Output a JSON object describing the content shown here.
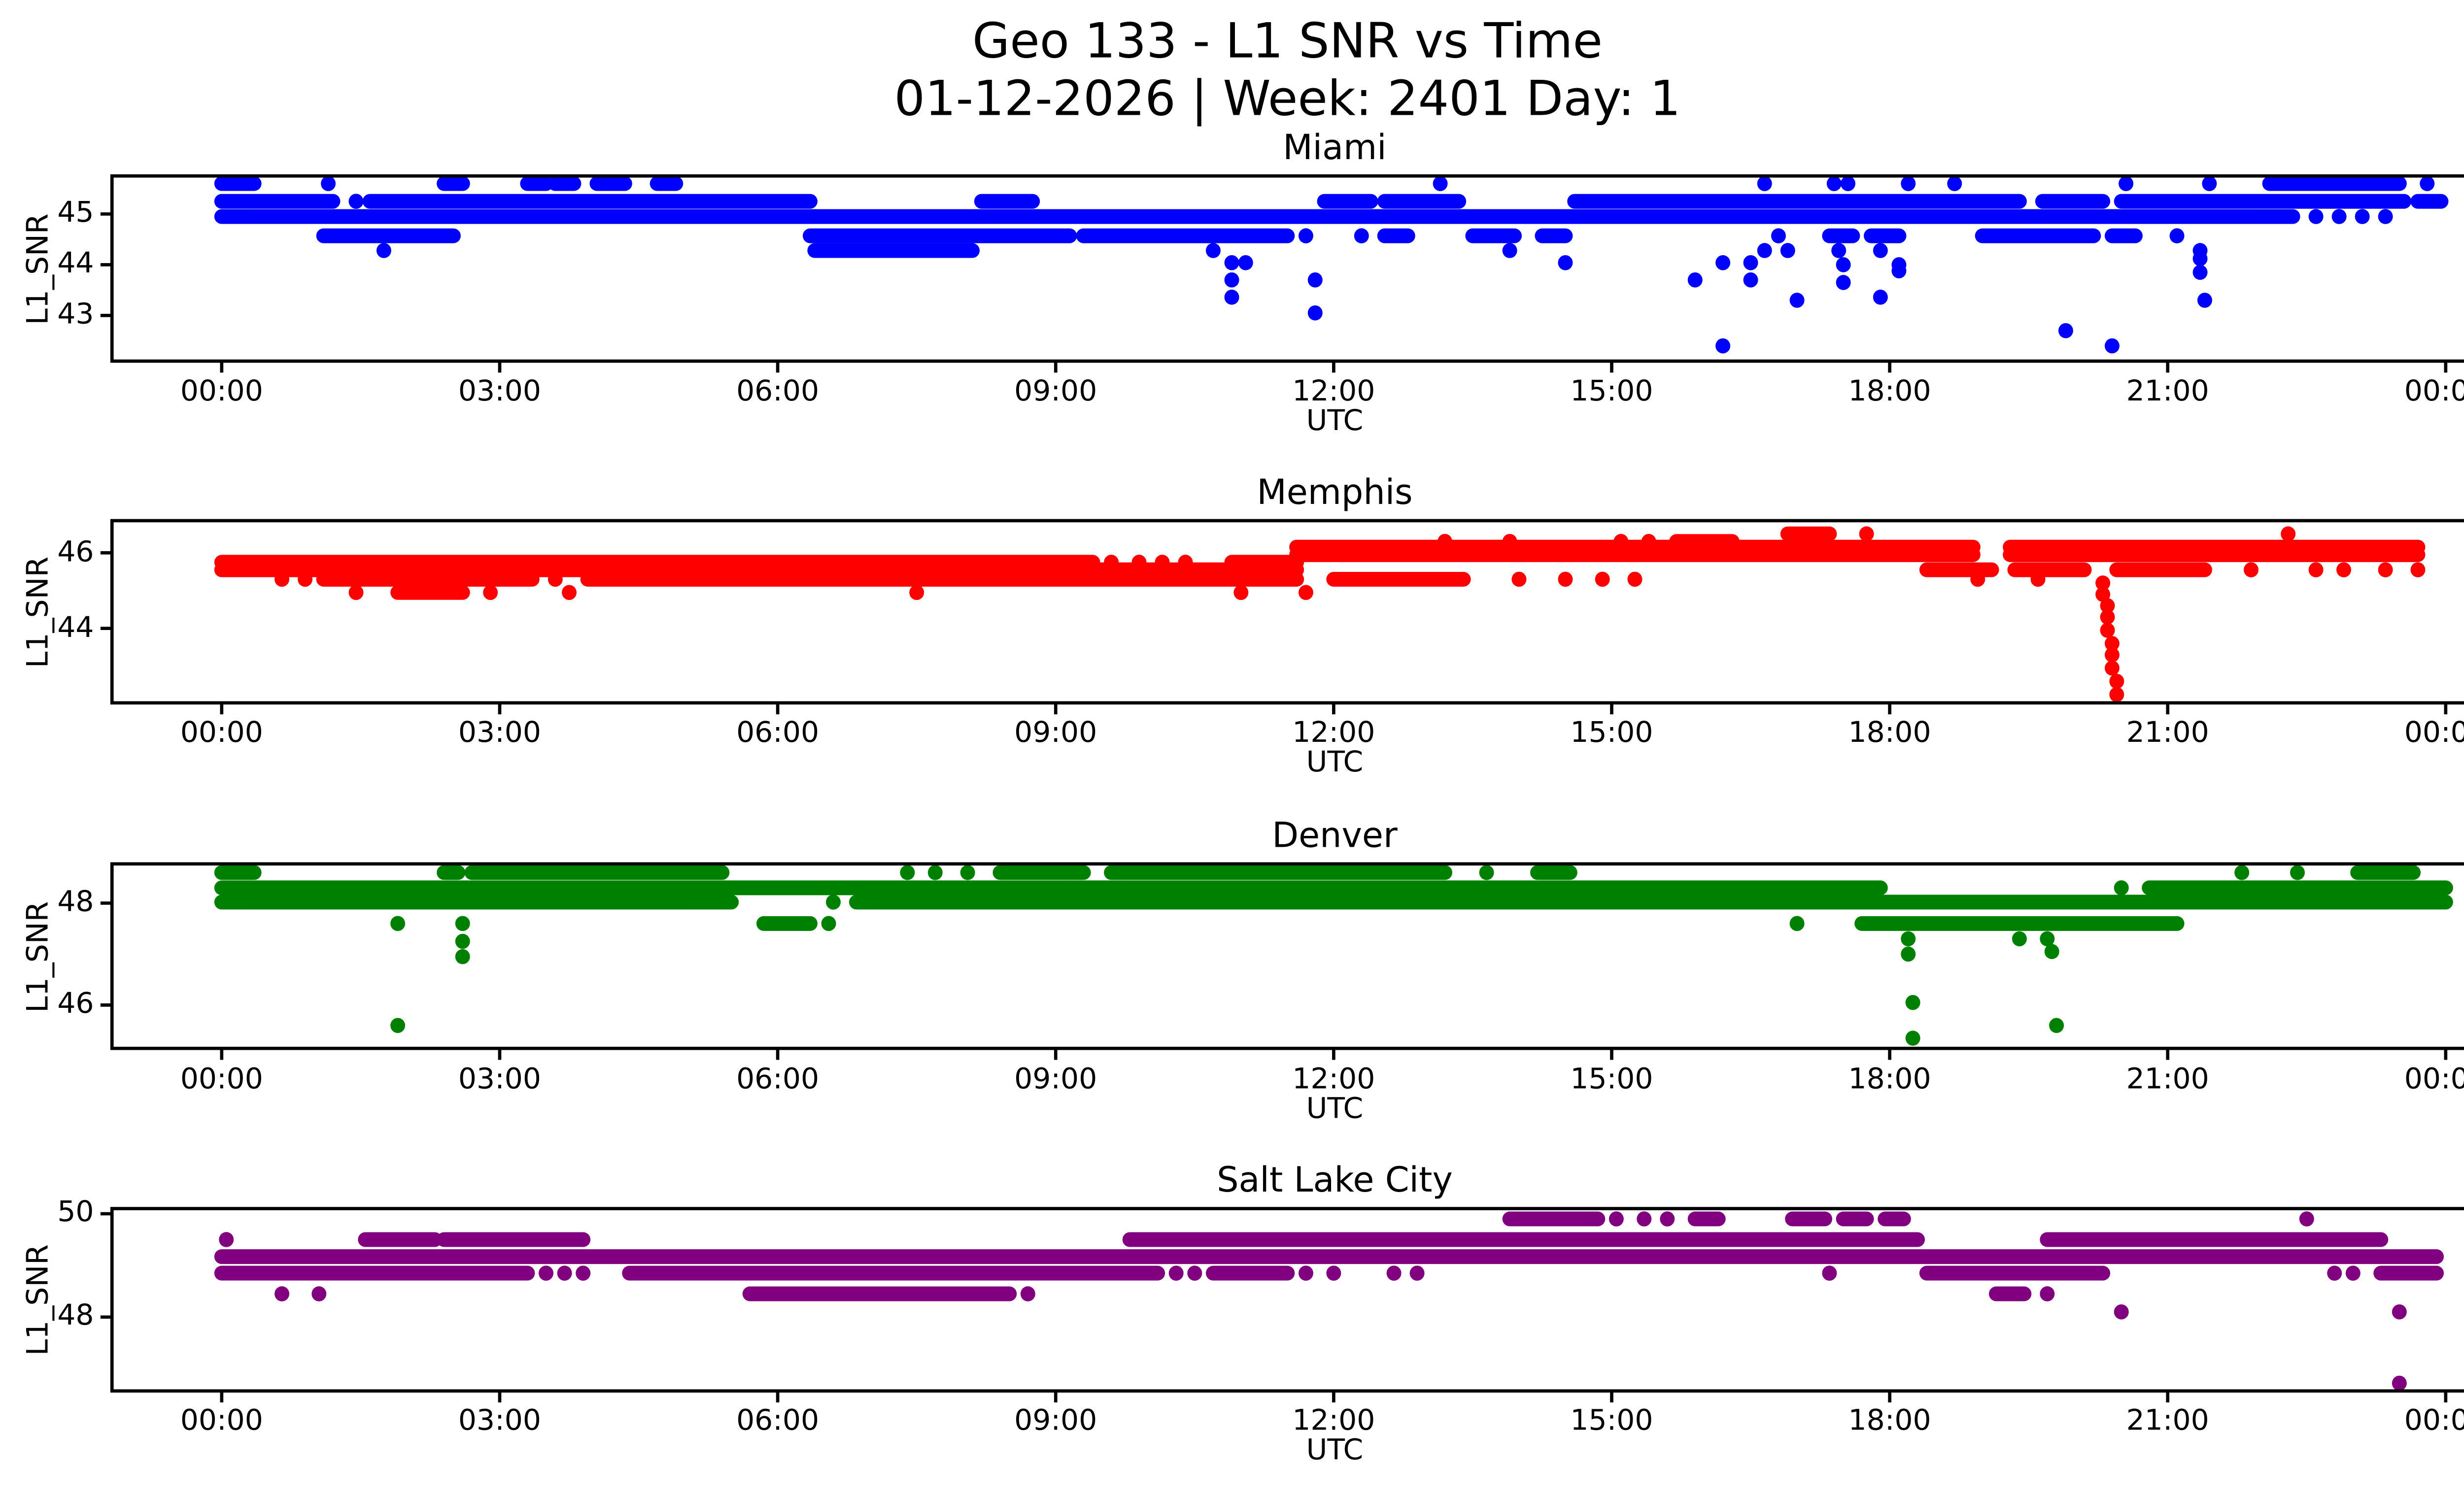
{
  "figure": {
    "suptitle_line1": "Geo 133 - L1 SNR vs Time",
    "suptitle_line2": "01-12-2026 | Week: 2401 Day: 1",
    "background_color": "#ffffff",
    "text_color": "#000000"
  },
  "chart_data": {
    "type": "scatter",
    "xlabel": "UTC",
    "ylabel": "L1_SNR",
    "x_unit": "hours",
    "x_tick_labels": [
      "00:00",
      "03:00",
      "06:00",
      "09:00",
      "12:00",
      "15:00",
      "18:00",
      "21:00",
      "00:00"
    ],
    "x_tick_hours": [
      0,
      3,
      6,
      9,
      12,
      15,
      18,
      21,
      24
    ],
    "xlim_hours": [
      -1.18,
      25.08
    ],
    "encoding_note": "Dense scatter runs are encoded as bands: each band is one SNR level (dB-Hz) with [startHour,endHour] runs and isolated dot hours; sparse markers are listed as individual [hour, snr] points.",
    "subplots": [
      {
        "title": "Miami",
        "color": "#0000ff",
        "ylim": [
          42.1,
          45.75
        ],
        "yticks": [
          43,
          44,
          45
        ],
        "ytick_labels": [
          "43",
          "44",
          "45"
        ],
        "bands": [
          {
            "snr": 45.6,
            "runs": [
              [
                0,
                0.35
              ],
              [
                2.4,
                2.6
              ],
              [
                3.3,
                3.5
              ],
              [
                3.6,
                3.8
              ],
              [
                4.05,
                4.35
              ],
              [
                4.7,
                4.9
              ],
              [
                22.1,
                23.5
              ]
            ],
            "dots": [
              1.15,
              13.15,
              16.65,
              17.4,
              17.55,
              18.2,
              18.7,
              20.55,
              21.45,
              23.8
            ]
          },
          {
            "snr": 45.25,
            "runs": [
              [
                0,
                1.2
              ],
              [
                1.6,
                6.35
              ],
              [
                8.2,
                8.75
              ],
              [
                11.9,
                12.4
              ],
              [
                12.55,
                13.35
              ],
              [
                14.6,
                19.4
              ],
              [
                19.65,
                20.3
              ],
              [
                20.5,
                23.55
              ],
              [
                23.7,
                23.95
              ]
            ],
            "dots": [
              1.45
            ]
          },
          {
            "snr": 44.95,
            "runs": [
              [
                0,
                22.35
              ]
            ],
            "dots": [
              22.6,
              22.85,
              23.1,
              23.35
            ]
          },
          {
            "snr": 44.57,
            "runs": [
              [
                1.1,
                2.5
              ],
              [
                6.35,
                9.15
              ],
              [
                9.3,
                11.5
              ],
              [
                12.55,
                12.8
              ],
              [
                13.5,
                13.95
              ],
              [
                14.25,
                14.5
              ],
              [
                17.35,
                17.6
              ],
              [
                17.8,
                18.1
              ],
              [
                19.0,
                20.2
              ],
              [
                20.4,
                20.65
              ]
            ],
            "dots": [
              11.7,
              12.3,
              16.8,
              21.1
            ]
          },
          {
            "snr": 44.28,
            "runs": [
              [
                6.4,
                8.1
              ]
            ],
            "dots": [
              1.75,
              10.7,
              13.9,
              16.65,
              16.9,
              17.45,
              17.9,
              21.35
            ]
          }
        ],
        "points": [
          [
            10.9,
            44.04
          ],
          [
            11.05,
            44.04
          ],
          [
            14.5,
            44.04
          ],
          [
            16.2,
            44.04
          ],
          [
            16.5,
            44.04
          ],
          [
            17.5,
            44.0
          ],
          [
            18.1,
            44.0
          ],
          [
            21.35,
            44.12
          ],
          [
            10.9,
            43.7
          ],
          [
            11.8,
            43.7
          ],
          [
            15.9,
            43.7
          ],
          [
            16.5,
            43.7
          ],
          [
            17.5,
            43.65
          ],
          [
            18.1,
            43.88
          ],
          [
            10.9,
            43.36
          ],
          [
            17.0,
            43.3
          ],
          [
            17.9,
            43.36
          ],
          [
            21.35,
            43.85
          ],
          [
            21.4,
            43.3
          ],
          [
            11.8,
            43.05
          ],
          [
            19.9,
            42.7
          ],
          [
            16.2,
            42.4
          ],
          [
            20.4,
            42.4
          ]
        ]
      },
      {
        "title": "Memphis",
        "color": "#ff0000",
        "ylim": [
          42.03,
          46.85
        ],
        "yticks": [
          44,
          46
        ],
        "ytick_labels": [
          "44",
          "46"
        ],
        "bands": [
          {
            "snr": 46.5,
            "runs": [
              [
                16.9,
                17.35
              ]
            ],
            "dots": [
              17.75,
              22.3
            ]
          },
          {
            "snr": 46.3,
            "runs": [
              [
                15.7,
                16.3
              ]
            ],
            "dots": [
              13.2,
              13.9,
              15.1,
              15.4
            ]
          },
          {
            "snr": 46.15,
            "runs": [
              [
                11.6,
                18.9
              ],
              [
                19.3,
                23.7
              ]
            ],
            "dots": []
          },
          {
            "snr": 45.95,
            "runs": [
              [
                11.6,
                18.9
              ],
              [
                19.3,
                23.7
              ]
            ],
            "dots": []
          },
          {
            "snr": 45.75,
            "runs": [
              [
                0,
                9.4
              ],
              [
                10.9,
                11.6
              ]
            ],
            "dots": [
              9.6,
              9.9,
              10.15,
              10.4
            ]
          },
          {
            "snr": 45.55,
            "runs": [
              [
                0,
                11.6
              ],
              [
                18.4,
                19.1
              ],
              [
                19.35,
                20.1
              ],
              [
                20.45,
                21.4
              ]
            ],
            "dots": [
              21.9,
              22.6,
              22.9,
              23.35,
              23.7
            ]
          },
          {
            "snr": 45.3,
            "runs": [
              [
                1.1,
                3.35
              ],
              [
                3.95,
                11.6
              ],
              [
                12.0,
                13.4
              ]
            ],
            "dots": [
              0.65,
              0.9,
              3.6,
              14.0,
              14.5,
              14.9,
              15.25,
              18.95,
              19.6
            ]
          },
          {
            "snr": 44.95,
            "runs": [
              [
                1.9,
                2.6
              ]
            ],
            "dots": [
              1.45,
              2.9,
              3.75,
              7.5,
              11.0,
              11.7
            ]
          }
        ],
        "points": [
          [
            20.3,
            45.2
          ],
          [
            20.3,
            44.9
          ],
          [
            20.35,
            44.6
          ],
          [
            20.35,
            44.3
          ],
          [
            20.35,
            43.95
          ],
          [
            20.4,
            43.6
          ],
          [
            20.4,
            43.3
          ],
          [
            20.4,
            42.95
          ],
          [
            20.45,
            42.6
          ],
          [
            20.45,
            42.25
          ]
        ]
      },
      {
        "title": "Denver",
        "color": "#008000",
        "ylim": [
          45.15,
          48.77
        ],
        "yticks": [
          46,
          48
        ],
        "ytick_labels": [
          "46",
          "48"
        ],
        "bands": [
          {
            "snr": 48.6,
            "runs": [
              [
                0,
                0.35
              ],
              [
                2.4,
                2.55
              ],
              [
                2.7,
                5.4
              ],
              [
                8.4,
                9.3
              ],
              [
                9.6,
                13.2
              ],
              [
                14.2,
                14.55
              ],
              [
                23.05,
                23.65
              ]
            ],
            "dots": [
              7.4,
              7.7,
              8.05,
              13.65,
              21.8,
              22.4
            ]
          },
          {
            "snr": 48.3,
            "runs": [
              [
                0,
                17.9
              ],
              [
                20.8,
                24.0
              ]
            ],
            "dots": [
              20.5
            ]
          },
          {
            "snr": 48.02,
            "runs": [
              [
                0,
                5.5
              ],
              [
                6.85,
                24.0
              ]
            ],
            "dots": [
              6.6
            ]
          },
          {
            "snr": 47.6,
            "runs": [
              [
                5.85,
                6.35
              ],
              [
                17.7,
                21.1
              ]
            ],
            "dots": [
              1.9,
              2.6,
              6.55,
              17.0
            ]
          }
        ],
        "points": [
          [
            2.6,
            47.25
          ],
          [
            2.6,
            46.95
          ],
          [
            1.9,
            45.6
          ],
          [
            18.2,
            47.3
          ],
          [
            18.2,
            47.0
          ],
          [
            18.25,
            46.05
          ],
          [
            18.25,
            45.35
          ],
          [
            19.4,
            47.3
          ],
          [
            19.7,
            47.3
          ],
          [
            19.75,
            47.05
          ],
          [
            19.8,
            45.6
          ]
        ]
      },
      {
        "title": "Salt Lake City",
        "color": "#800080",
        "ylim": [
          46.57,
          50.1
        ],
        "yticks": [
          48,
          50
        ],
        "ytick_labels": [
          "48",
          "50"
        ],
        "bands": [
          {
            "snr": 49.9,
            "runs": [
              [
                13.9,
                14.85
              ],
              [
                15.9,
                16.15
              ],
              [
                16.95,
                17.3
              ],
              [
                17.5,
                17.75
              ],
              [
                17.95,
                18.15
              ]
            ],
            "dots": [
              15.05,
              15.35,
              15.6,
              22.5
            ]
          },
          {
            "snr": 49.5,
            "runs": [
              [
                1.55,
                2.3
              ],
              [
                2.4,
                3.9
              ],
              [
                9.8,
                18.3
              ],
              [
                19.7,
                23.3
              ]
            ],
            "dots": [
              0.05
            ]
          },
          {
            "snr": 49.17,
            "runs": [
              [
                0,
                23.9
              ]
            ],
            "dots": []
          },
          {
            "snr": 48.85,
            "runs": [
              [
                0,
                3.3
              ],
              [
                4.4,
                10.1
              ],
              [
                10.7,
                11.5
              ],
              [
                18.4,
                20.3
              ],
              [
                23.3,
                23.9
              ]
            ],
            "dots": [
              3.5,
              3.7,
              3.9,
              10.3,
              10.5,
              11.7,
              12.0,
              12.65,
              12.9,
              17.35,
              22.8,
              23.0
            ]
          },
          {
            "snr": 48.45,
            "runs": [
              [
                5.7,
                8.5
              ],
              [
                19.15,
                19.45
              ]
            ],
            "dots": [
              0.65,
              1.05,
              8.7,
              19.7
            ]
          }
        ],
        "points": [
          [
            20.5,
            48.1
          ],
          [
            23.5,
            48.1
          ],
          [
            23.5,
            46.72
          ]
        ]
      }
    ]
  }
}
